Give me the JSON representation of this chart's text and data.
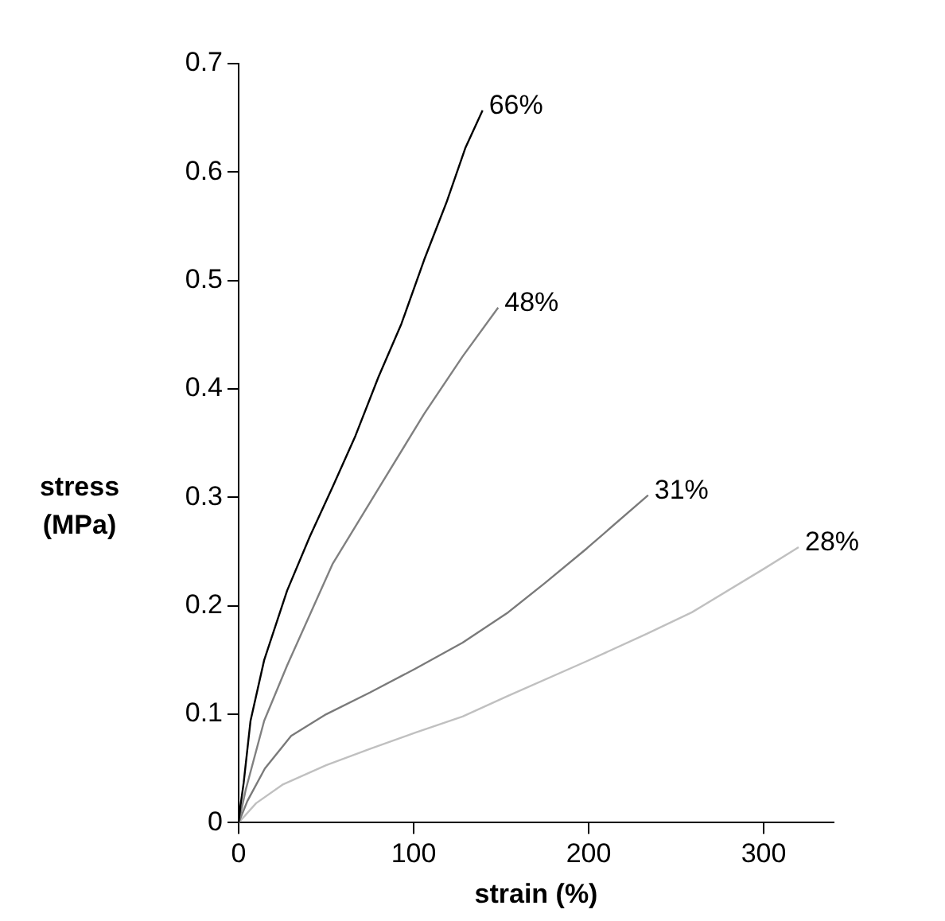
{
  "chart_data": {
    "type": "line",
    "xlabel": "strain (%)",
    "ylabel": "stress (MPa)",
    "xlim": [
      0,
      340
    ],
    "xticks": [
      0,
      100,
      200,
      300
    ],
    "ylim": [
      0,
      0.7
    ],
    "yticks": [
      0,
      0.1,
      0.2,
      0.3,
      0.4,
      0.5,
      0.6,
      0.7
    ],
    "grid": false,
    "legend": false,
    "marker": "none",
    "line_style": "solid",
    "series": [
      {
        "name": "66%",
        "color": "#000000",
        "x": [
          0,
          1,
          2.9,
          6.8,
          14.6,
          27.7,
          40.7,
          53.8,
          66.8,
          79.9,
          93,
          106,
          119,
          129.5,
          139.4
        ],
        "values": [
          0,
          0.015,
          0.037,
          0.094,
          0.15,
          0.214,
          0.264,
          0.31,
          0.357,
          0.411,
          0.46,
          0.519,
          0.573,
          0.622,
          0.657
        ]
      },
      {
        "name": "48%",
        "color": "#808080",
        "x": [
          0,
          4,
          14.6,
          27.7,
          53.8,
          79.9,
          106,
          128,
          148.3
        ],
        "values": [
          0,
          0.03,
          0.094,
          0.145,
          0.239,
          0.308,
          0.377,
          0.43,
          0.475
        ]
      },
      {
        "name": "31%",
        "color": "#7a7a7a",
        "x": [
          0,
          5,
          15,
          30,
          50,
          75,
          101,
          128,
          154,
          175,
          199,
          234
        ],
        "values": [
          0,
          0.02,
          0.05,
          0.08,
          0.1,
          0.12,
          0.142,
          0.166,
          0.194,
          0.221,
          0.253,
          0.302
        ]
      },
      {
        "name": "28%",
        "color": "#c0c0c0",
        "x": [
          0,
          10,
          25,
          50,
          75,
          101,
          128,
          154,
          199,
          233,
          259,
          300,
          320
        ],
        "values": [
          0,
          0.018,
          0.035,
          0.053,
          0.068,
          0.083,
          0.098,
          0.117,
          0.149,
          0.174,
          0.194,
          0.234,
          0.254
        ]
      }
    ]
  }
}
